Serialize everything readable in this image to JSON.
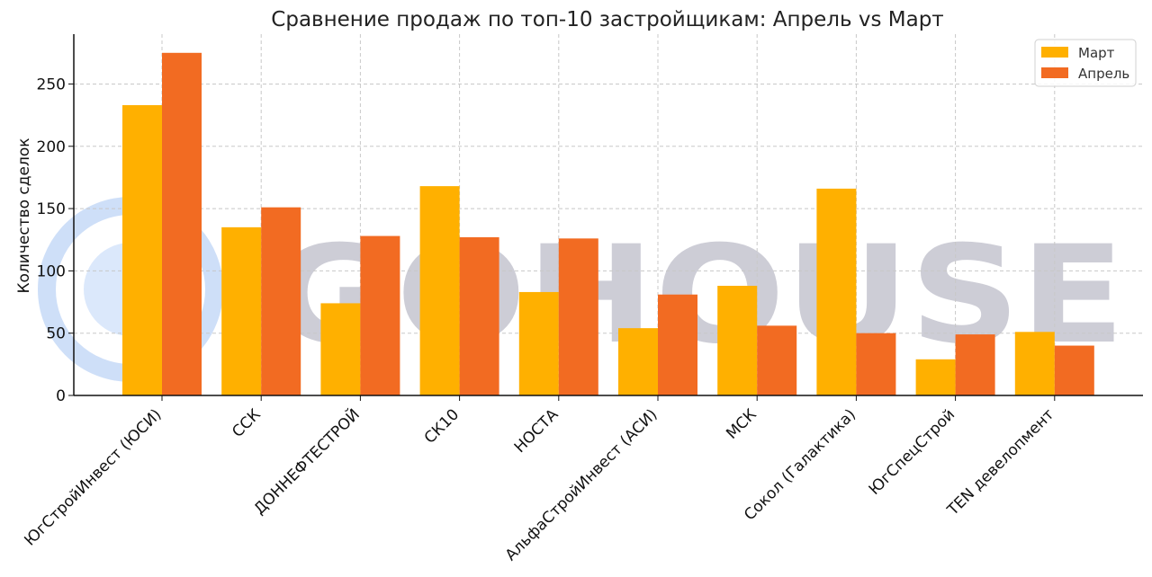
{
  "chart_data": {
    "type": "bar",
    "title": "Сравнение продаж по топ-10 застройщикам: Апрель vs Март",
    "xlabel": "",
    "ylabel": "Количество сделок",
    "ylim": [
      0,
      290
    ],
    "yticks": [
      0,
      50,
      100,
      150,
      200,
      250
    ],
    "grid": true,
    "legend_position": "top-right",
    "categories": [
      "ЮгСтройИнвест (ЮСИ)",
      "ССК",
      "ДОННЕФТЕСТРОЙ",
      "СК10",
      "НОСТА",
      "АльфаСтройИнвест (АСИ)",
      "МСК",
      "Сокол (Галактика)",
      "ЮгСпецСтрой",
      "TEN девелопмент"
    ],
    "series": [
      {
        "name": "Март",
        "color": "#ffb000",
        "values": [
          233,
          135,
          74,
          168,
          83,
          54,
          88,
          166,
          29,
          51
        ]
      },
      {
        "name": "Апрель",
        "color": "#f26b22",
        "values": [
          275,
          151,
          128,
          127,
          126,
          81,
          56,
          50,
          49,
          40
        ]
      }
    ]
  },
  "watermark": {
    "text": "GOHOUSE",
    "logo": "circle-logo-icon"
  }
}
